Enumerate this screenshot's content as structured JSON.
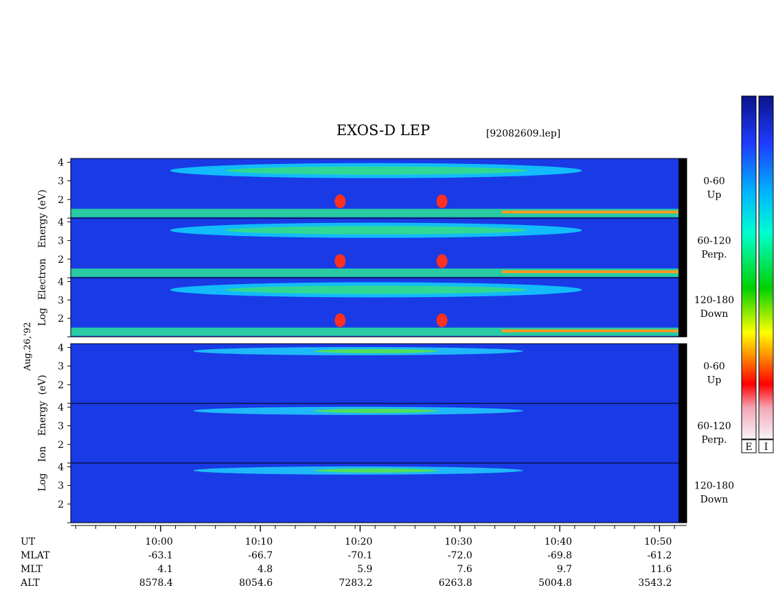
{
  "chart_data": {
    "type": "heatmap",
    "title": "EXOS-D LEP",
    "file_label": "[92082609.lep]",
    "date_label": "Aug.26,'92",
    "electron_ylabel": [
      "Log",
      "Electron",
      "Energy",
      "(eV)"
    ],
    "ion_ylabel": [
      "Log",
      "Ion",
      "Energy",
      "(eV)"
    ],
    "ylim": [
      1,
      4.2
    ],
    "y_ticks": [
      1,
      2,
      3,
      4
    ],
    "y_tick_labels": [
      "",
      "2",
      "3",
      "4"
    ],
    "x_ticks": [
      10.0,
      10.1667,
      10.3333,
      10.5,
      10.6667,
      10.8333
    ],
    "xlim": [
      9.85,
      10.865
    ],
    "x_minor_step_min": 2,
    "panels": [
      {
        "species": "electron",
        "angle": "0-60",
        "direction": "Up"
      },
      {
        "species": "electron",
        "angle": "60-120",
        "direction": "Perp."
      },
      {
        "species": "electron",
        "angle": "120-180",
        "direction": "Down"
      },
      {
        "species": "ion",
        "angle": "0-60",
        "direction": "Up"
      },
      {
        "species": "ion",
        "angle": "60-120",
        "direction": "Perp."
      },
      {
        "species": "ion",
        "angle": "120-180",
        "direction": "Down"
      }
    ],
    "orbit_rows": [
      {
        "label": "UT",
        "values": [
          "10:00",
          "10:10",
          "10:20",
          "10:30",
          "10:40",
          "10:50"
        ]
      },
      {
        "label": "MLAT",
        "values": [
          "-63.1",
          "-66.7",
          "-70.1",
          "-72.0",
          "-69.8",
          "-61.2"
        ]
      },
      {
        "label": "MLT",
        "values": [
          "4.1",
          "4.8",
          "5.9",
          "7.6",
          "9.7",
          "11.6"
        ]
      },
      {
        "label": "ALT",
        "values": [
          "8578.4",
          "8054.6",
          "7283.2",
          "6263.8",
          "5004.8",
          "3543.2"
        ]
      }
    ],
    "colorbars": [
      {
        "label": "E"
      },
      {
        "label": "I"
      }
    ],
    "colors": {
      "scale": [
        "#f5f2f5",
        "#f2a0b0",
        "#ff0000",
        "#ff8000",
        "#ffff00",
        "#00cc00",
        "#00ffcc",
        "#00bfff",
        "#1e40ff",
        "#0a1a8c"
      ]
    }
  }
}
